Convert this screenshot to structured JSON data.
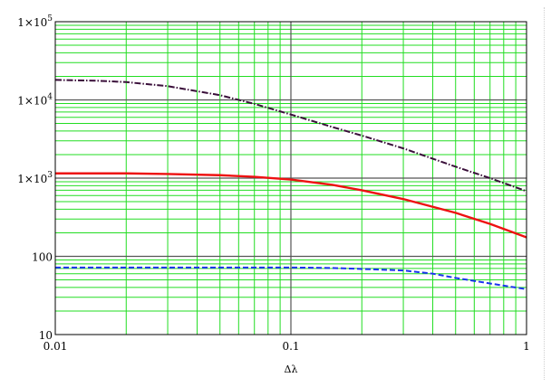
{
  "chart_data": {
    "type": "line",
    "xscale": "log",
    "yscale": "log",
    "xlim": [
      0.01,
      1
    ],
    "ylim": [
      10,
      100000
    ],
    "xlabel": "Δλ",
    "ylabel": "",
    "grid": true,
    "x_tick_labels": [
      {
        "value": 0.01,
        "label": "0.01"
      },
      {
        "value": 0.1,
        "label": "0.1"
      },
      {
        "value": 1,
        "label": "1"
      }
    ],
    "y_tick_labels": [
      {
        "value": 10,
        "base": "10",
        "exp": ""
      },
      {
        "value": 100,
        "base": "100",
        "exp": ""
      },
      {
        "value": 1000,
        "base": "1×10",
        "exp": "3"
      },
      {
        "value": 10000,
        "base": "1×10",
        "exp": "4"
      },
      {
        "value": 100000,
        "base": "1×10",
        "exp": "5"
      }
    ],
    "series": [
      {
        "color": "#3a0f3a",
        "style": "dashdot",
        "x": [
          0.01,
          0.015,
          0.02,
          0.03,
          0.05,
          0.07,
          0.1,
          0.15,
          0.2,
          0.3,
          0.5,
          0.7,
          1
        ],
        "y": [
          18000,
          17600,
          16900,
          15000,
          11500,
          8900,
          6500,
          4500,
          3500,
          2400,
          1400,
          1000,
          680
        ]
      },
      {
        "color": "#ee1111",
        "style": "solid",
        "x": [
          0.01,
          0.02,
          0.03,
          0.05,
          0.07,
          0.1,
          0.15,
          0.2,
          0.3,
          0.5,
          0.7,
          1
        ],
        "y": [
          1150,
          1150,
          1130,
          1090,
          1040,
          960,
          820,
          700,
          540,
          360,
          260,
          175
        ]
      },
      {
        "color": "#1a33ee",
        "style": "dashed",
        "x": [
          0.01,
          0.02,
          0.05,
          0.1,
          0.15,
          0.2,
          0.3,
          0.4,
          0.5,
          0.7,
          1
        ],
        "y": [
          72,
          72,
          72,
          72,
          71,
          69,
          66,
          60,
          53,
          45,
          38
        ]
      }
    ],
    "colors": {
      "grid_minor": "#22dd22",
      "grid_major": "#555555",
      "frame": "#000000"
    }
  }
}
